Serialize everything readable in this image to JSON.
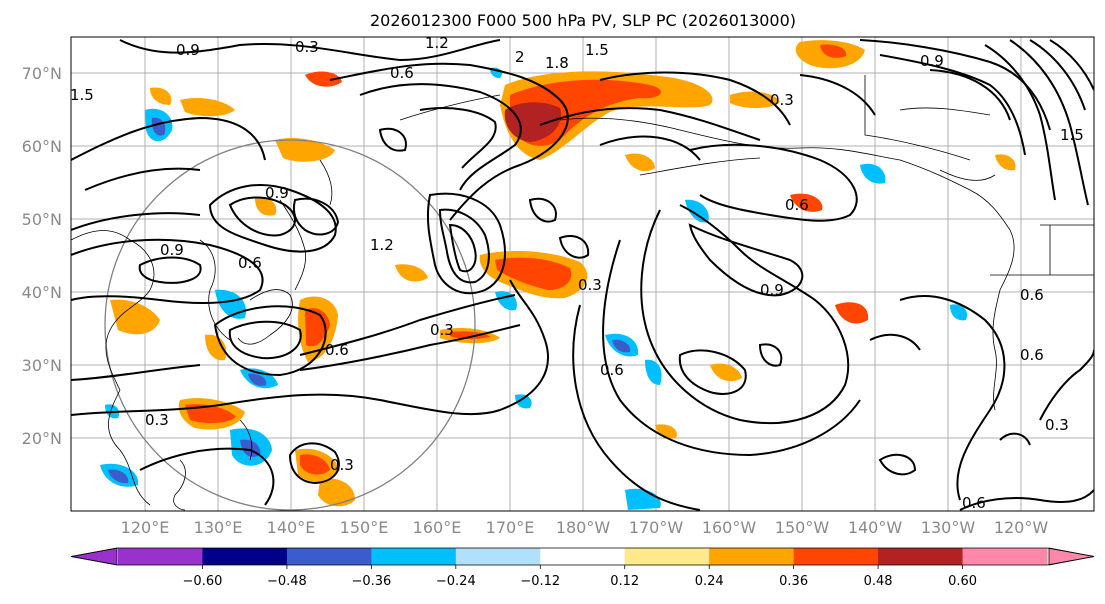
{
  "title": "2026012300 F000 500 hPa PV, SLP PC (2026013000)",
  "map": {
    "lat_labels": [
      "70°N",
      "60°N",
      "50°N",
      "40°N",
      "30°N",
      "20°N"
    ],
    "lon_labels": [
      "120°E",
      "130°E",
      "140°E",
      "150°E",
      "160°E",
      "170°E",
      "180°W",
      "170°W",
      "160°W",
      "150°W",
      "140°W",
      "130°W",
      "120°W"
    ],
    "contour_labels": [
      "0.3",
      "0.6",
      "0.9",
      "1.2",
      "1.5",
      "1.8",
      "2",
      "0.9",
      "0.6",
      "0.3",
      "0.9",
      "0.6",
      "0.3",
      "0.6",
      "0.9",
      "0.6",
      "0.3",
      "0.9",
      "0.6",
      "1.2",
      "1.5",
      "1.5",
      "0.3",
      "0.3",
      "0.6",
      "0.3",
      "0.6"
    ],
    "colors": {
      "neg_060": "#9932cc",
      "neg_048": "#00008b",
      "neg_036": "#3a5ccc",
      "neg_024": "#00bfff",
      "neg_012": "#b0e0fa",
      "zero": "#ffffff",
      "pos_012": "#ffe98a",
      "pos_024": "#ffa500",
      "pos_036": "#ff4500",
      "pos_048": "#b22222",
      "pos_060": "#ff88aa",
      "contour": "#000000",
      "coast": "#000000",
      "grid": "#b0b0b0",
      "range_ring": "#808080"
    }
  },
  "colorbar": {
    "tick_labels": [
      "−0.60",
      "−0.48",
      "−0.36",
      "−0.24",
      "−0.12",
      "0.12",
      "0.24",
      "0.36",
      "0.48",
      "0.60"
    ],
    "colors": [
      "#9932cc",
      "#00008b",
      "#3a5ccc",
      "#00bfff",
      "#b0e0fa",
      "#ffffff",
      "#ffe98a",
      "#ffa500",
      "#ff4500",
      "#b22222",
      "#ff88aa"
    ]
  }
}
